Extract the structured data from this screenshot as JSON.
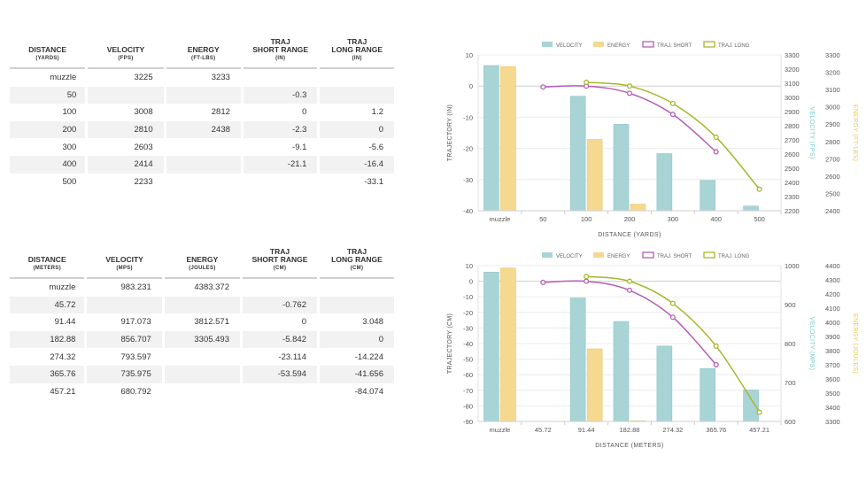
{
  "tables": [
    {
      "headers": [
        {
          "title": "DISTANCE",
          "unit": "(YARDS)"
        },
        {
          "title": "VELOCITY",
          "unit": "(FPS)"
        },
        {
          "title": "ENERGY",
          "unit": "(FT-LBS)"
        },
        {
          "title": "TRAJ SHORT RANGE",
          "unit": "(IN)"
        },
        {
          "title": "TRAJ LONG RANGE",
          "unit": "(IN)"
        }
      ],
      "rows": [
        [
          "muzzle",
          "3225",
          "3233",
          "",
          ""
        ],
        [
          "50",
          "",
          "",
          "-0.3",
          ""
        ],
        [
          "100",
          "3008",
          "2812",
          "0",
          "1.2"
        ],
        [
          "200",
          "2810",
          "2438",
          "-2.3",
          "0"
        ],
        [
          "300",
          "2603",
          "",
          "-9.1",
          "-5.6"
        ],
        [
          "400",
          "2414",
          "",
          "-21.1",
          "-16.4"
        ],
        [
          "500",
          "2233",
          "",
          "",
          "-33.1"
        ]
      ]
    },
    {
      "headers": [
        {
          "title": "DISTANCE",
          "unit": "(METERS)"
        },
        {
          "title": "VELOCITY",
          "unit": "(MPS)"
        },
        {
          "title": "ENERGY",
          "unit": "(JOULES)"
        },
        {
          "title": "TRAJ SHORT RANGE",
          "unit": "(CM)"
        },
        {
          "title": "TRAJ LONG RANGE",
          "unit": "(CM)"
        }
      ],
      "rows": [
        [
          "muzzle",
          "983.231",
          "4383.372",
          "",
          ""
        ],
        [
          "45.72",
          "",
          "",
          "-0.762",
          ""
        ],
        [
          "91.44",
          "917.073",
          "3812.571",
          "0",
          "3.048"
        ],
        [
          "182.88",
          "856.707",
          "3305.493",
          "-5.842",
          "0"
        ],
        [
          "274.32",
          "793.597",
          "",
          "-23.114",
          "-14.224"
        ],
        [
          "365.76",
          "735.975",
          "",
          "-53.594",
          "-41.656"
        ],
        [
          "457.21",
          "680.792",
          "",
          "",
          "-84.074"
        ]
      ]
    }
  ],
  "colors": {
    "velocity": "#a8d4d6",
    "energy": "#f5d991",
    "traj_short": "#b45eb6",
    "traj_long": "#a7b72a",
    "axis_text": "#555555",
    "velocity_axis_label": "#7cc8cb",
    "energy_axis_label": "#f0c74a"
  },
  "chart_data": [
    {
      "type": "bar",
      "legend": [
        "VELOCITY",
        "ENERGY",
        "TRAJ. SHORT",
        "TRAJ. LONG"
      ],
      "legend_position": "top",
      "categories": [
        "muzzle",
        "50",
        "100",
        "200",
        "300",
        "400",
        "500"
      ],
      "xlabel": "DISTANCE (YARDS)",
      "ylabel_left": "TRAJECTORY (IN)",
      "ylabel_right1": "VELOCITY (FPS)",
      "ylabel_right2": "ENERGY (FT-LBS)",
      "ylim_left": [
        -40,
        10
      ],
      "yticks_left": [
        10,
        0,
        -10,
        -20,
        -30,
        -40
      ],
      "ylim_right1": [
        2200,
        3300
      ],
      "yticks_right1": [
        3300,
        3200,
        3100,
        3000,
        2900,
        2800,
        2700,
        2600,
        2500,
        2400,
        2300,
        2200
      ],
      "ylim_right2": [
        2400,
        3300
      ],
      "yticks_right2": [
        3300,
        3200,
        3100,
        3000,
        2900,
        2800,
        2700,
        2600,
        2500,
        2400
      ],
      "series": [
        {
          "name": "VELOCITY",
          "type": "bar",
          "axis": "right1",
          "values": [
            3225,
            null,
            3008,
            2810,
            2603,
            2414,
            2233
          ]
        },
        {
          "name": "ENERGY",
          "type": "bar",
          "axis": "right2",
          "values": [
            3233,
            null,
            2812,
            2438,
            null,
            null,
            null
          ]
        },
        {
          "name": "TRAJ. SHORT",
          "type": "line",
          "axis": "left",
          "values": [
            null,
            -0.3,
            0,
            -2.3,
            -9.1,
            -21.1,
            null
          ]
        },
        {
          "name": "TRAJ. LONG",
          "type": "line",
          "axis": "left",
          "values": [
            null,
            null,
            1.2,
            0,
            -5.6,
            -16.4,
            -33.1
          ]
        }
      ]
    },
    {
      "type": "bar",
      "legend": [
        "VELOCITY",
        "ENERGY",
        "TRAJ. SHORT",
        "TRAJ. LONG"
      ],
      "legend_position": "top",
      "categories": [
        "muzzle",
        "45.72",
        "91.44",
        "182.88",
        "274.32",
        "365.76",
        "457.21"
      ],
      "xlabel": "DISTANCE (METERS)",
      "ylabel_left": "TRAJECTORY (CM)",
      "ylabel_right1": "VELOCITY (MPS)",
      "ylabel_right2": "ENERGY (JOULES)",
      "ylim_left": [
        -90,
        10
      ],
      "yticks_left": [
        10,
        0,
        -10,
        -20,
        -30,
        -40,
        -50,
        -60,
        -70,
        -80,
        -90
      ],
      "ylim_right1": [
        600,
        1000
      ],
      "yticks_right1": [
        1000,
        900,
        800,
        700,
        600
      ],
      "ylim_right2": [
        3300,
        4400
      ],
      "yticks_right2": [
        4400,
        4300,
        4200,
        4100,
        4000,
        3900,
        3800,
        3700,
        3600,
        3500,
        3400,
        3300
      ],
      "series": [
        {
          "name": "VELOCITY",
          "type": "bar",
          "axis": "right1",
          "values": [
            983.231,
            null,
            917.073,
            856.707,
            793.597,
            735.975,
            680.792
          ]
        },
        {
          "name": "ENERGY",
          "type": "bar",
          "axis": "right2",
          "values": [
            4383.372,
            null,
            3812.571,
            3305.493,
            null,
            null,
            null
          ]
        },
        {
          "name": "TRAJ. SHORT",
          "type": "line",
          "axis": "left",
          "values": [
            null,
            -0.762,
            0,
            -5.842,
            -23.114,
            -53.594,
            null
          ]
        },
        {
          "name": "TRAJ. LONG",
          "type": "line",
          "axis": "left",
          "values": [
            null,
            null,
            3.048,
            0,
            -14.224,
            -41.656,
            -84.074
          ]
        }
      ]
    }
  ]
}
